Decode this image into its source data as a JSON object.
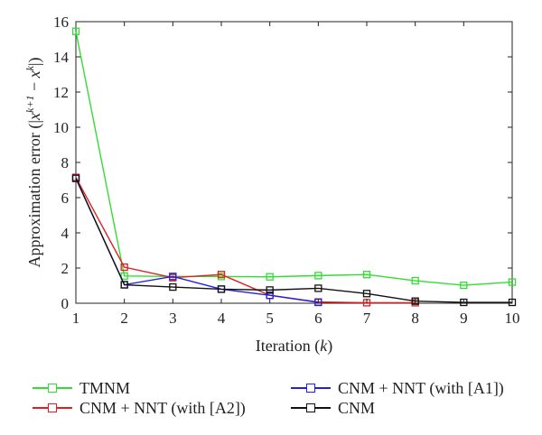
{
  "chart_data": {
    "type": "line",
    "x": [
      1,
      2,
      3,
      4,
      5,
      6,
      7,
      8,
      9,
      10
    ],
    "xlabel_text": "Iteration (",
    "xlabel_var": "k",
    "xlabel_end": ")",
    "ylabel": "Approximation error (|x^{k+1} − x^{k}|)",
    "ylabel_parts": {
      "pre": "Approximation error (|",
      "x1": "x",
      "sup1": "k+1",
      "minus": " − ",
      "x2": "x",
      "sup2": "k",
      "post": "|)"
    },
    "xlim": [
      1,
      10
    ],
    "ylim": [
      0,
      16
    ],
    "xticks": [
      1,
      2,
      3,
      4,
      5,
      6,
      7,
      8,
      9,
      10
    ],
    "yticks": [
      0,
      2,
      4,
      6,
      8,
      10,
      12,
      14,
      16
    ],
    "grid": false,
    "legend_position": "bottom",
    "series": [
      {
        "name": "TMNM",
        "color": "#33dd33",
        "values": [
          15.45,
          1.55,
          1.52,
          1.52,
          1.5,
          1.57,
          1.63,
          1.28,
          1.02,
          1.2
        ]
      },
      {
        "name": "CNM + NNT (with [A2])",
        "color": "#e02020",
        "values": [
          7.15,
          2.05,
          1.45,
          1.63,
          0.45,
          0.07,
          0.03,
          0.03,
          null,
          null
        ]
      },
      {
        "name": "CNM + NNT (with [A1])",
        "color": "#2020e0",
        "values": [
          7.1,
          1.05,
          1.52,
          0.8,
          0.45,
          0.05,
          null,
          null,
          null,
          null
        ]
      },
      {
        "name": "CNM",
        "color": "#111111",
        "values": [
          7.1,
          1.05,
          0.92,
          0.8,
          0.75,
          0.85,
          0.55,
          0.12,
          0.05,
          0.05
        ]
      }
    ]
  }
}
